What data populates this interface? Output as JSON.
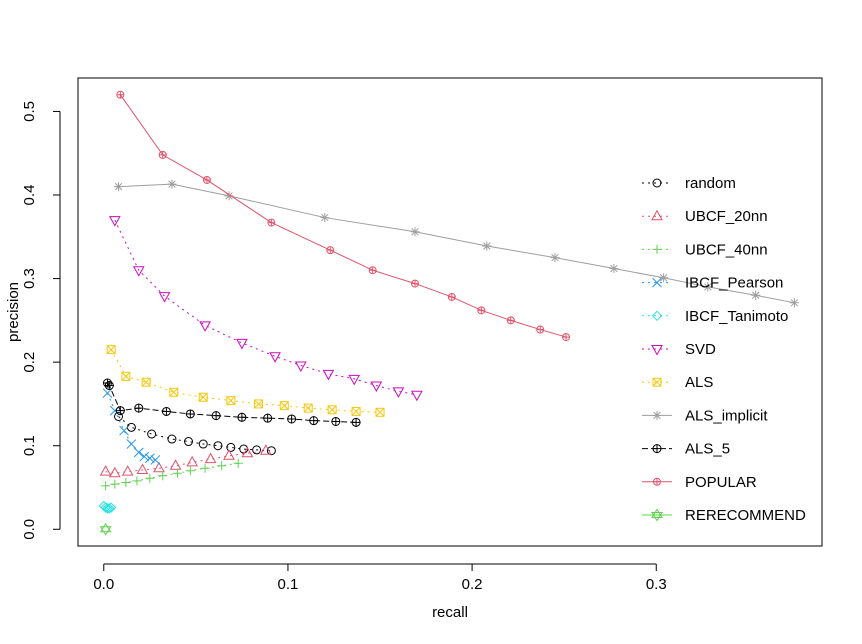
{
  "chart_data": {
    "type": "line",
    "title": "",
    "xlabel": "recall",
    "ylabel": "precision",
    "xlim": [
      -0.014,
      0.39
    ],
    "ylim": [
      -0.02,
      0.54
    ],
    "x_ticks": [
      0.0,
      0.1,
      0.2,
      0.3
    ],
    "x_tick_labels": [
      "0.0",
      "0.1",
      "0.2",
      "0.3"
    ],
    "y_ticks": [
      0.0,
      0.1,
      0.2,
      0.3,
      0.4,
      0.5
    ],
    "y_tick_labels": [
      "0.0",
      "0.1",
      "0.2",
      "0.3",
      "0.4",
      "0.5"
    ],
    "grid": false,
    "legend_position": "right",
    "series": [
      {
        "name": "random",
        "color": "#000000",
        "marker": "circle",
        "dash": "2,4",
        "x": [
          0.008,
          0.015,
          0.026,
          0.037,
          0.046,
          0.054,
          0.062,
          0.069,
          0.076,
          0.083,
          0.091
        ],
        "y": [
          0.135,
          0.122,
          0.114,
          0.108,
          0.105,
          0.102,
          0.1,
          0.098,
          0.096,
          0.095,
          0.094
        ]
      },
      {
        "name": "UBCF_20nn",
        "color": "#DF536B",
        "marker": "triangle-up",
        "dash": "2,4",
        "x": [
          0.001,
          0.006,
          0.013,
          0.021,
          0.03,
          0.039,
          0.048,
          0.058,
          0.068,
          0.078,
          0.088
        ],
        "y": [
          0.069,
          0.067,
          0.069,
          0.071,
          0.073,
          0.076,
          0.08,
          0.084,
          0.088,
          0.091,
          0.094
        ]
      },
      {
        "name": "UBCF_40nn",
        "color": "#61D04F",
        "marker": "plus",
        "dash": "2,4",
        "x": [
          0.001,
          0.006,
          0.012,
          0.018,
          0.025,
          0.032,
          0.04,
          0.047,
          0.055,
          0.064,
          0.073
        ],
        "y": [
          0.052,
          0.054,
          0.056,
          0.058,
          0.061,
          0.064,
          0.067,
          0.07,
          0.073,
          0.076,
          0.079
        ]
      },
      {
        "name": "IBCF_Pearson",
        "color": "#2297E6",
        "marker": "cross",
        "dash": "2,4",
        "x": [
          0.002,
          0.006,
          0.011,
          0.015,
          0.019,
          0.022,
          0.025,
          0.028
        ],
        "y": [
          0.163,
          0.142,
          0.118,
          0.102,
          0.092,
          0.087,
          0.085,
          0.083
        ]
      },
      {
        "name": "IBCF_Tanimoto",
        "color": "#28E2E5",
        "marker": "diamond",
        "dash": "2,4",
        "x": [
          0.0,
          0.001,
          0.002,
          0.003,
          0.004
        ],
        "y": [
          0.028,
          0.026,
          0.025,
          0.025,
          0.026
        ]
      },
      {
        "name": "SVD",
        "color": "#CD0BBC",
        "marker": "triangle-down",
        "dash": "2,4",
        "x": [
          0.006,
          0.019,
          0.033,
          0.055,
          0.075,
          0.093,
          0.107,
          0.122,
          0.136,
          0.148,
          0.16,
          0.17
        ],
        "y": [
          0.37,
          0.31,
          0.279,
          0.244,
          0.223,
          0.207,
          0.196,
          0.186,
          0.18,
          0.172,
          0.165,
          0.161
        ]
      },
      {
        "name": "ALS",
        "color": "#F5C710",
        "marker": "square-x",
        "dash": "2,4",
        "x": [
          0.004,
          0.012,
          0.023,
          0.038,
          0.054,
          0.069,
          0.084,
          0.098,
          0.111,
          0.124,
          0.137,
          0.15
        ],
        "y": [
          0.215,
          0.183,
          0.176,
          0.164,
          0.158,
          0.154,
          0.15,
          0.148,
          0.145,
          0.143,
          0.141,
          0.14
        ]
      },
      {
        "name": "ALS_implicit",
        "color": "#9E9E9E",
        "marker": "asterisk",
        "dash": "",
        "x": [
          0.008,
          0.037,
          0.068,
          0.12,
          0.169,
          0.208,
          0.245,
          0.277,
          0.304,
          0.328,
          0.354,
          0.375
        ],
        "y": [
          0.41,
          0.413,
          0.399,
          0.373,
          0.356,
          0.339,
          0.325,
          0.312,
          0.301,
          0.29,
          0.28,
          0.271
        ]
      },
      {
        "name": "ALS_5",
        "color": "#000000",
        "marker": "circle-plus",
        "dash": "6,3",
        "x": [
          0.002,
          0.003,
          0.009,
          0.019,
          0.034,
          0.047,
          0.061,
          0.075,
          0.089,
          0.102,
          0.114,
          0.126,
          0.137
        ],
        "y": [
          0.175,
          0.172,
          0.142,
          0.145,
          0.141,
          0.138,
          0.136,
          0.134,
          0.133,
          0.132,
          0.13,
          0.129,
          0.128
        ]
      },
      {
        "name": "POPULAR",
        "color": "#DF536B",
        "marker": "circle-plus-small",
        "dash": "",
        "x": [
          0.009,
          0.032,
          0.056,
          0.091,
          0.123,
          0.146,
          0.169,
          0.189,
          0.205,
          0.221,
          0.237,
          0.251
        ],
        "y": [
          0.52,
          0.448,
          0.418,
          0.367,
          0.334,
          0.31,
          0.294,
          0.278,
          0.262,
          0.25,
          0.239,
          0.23
        ]
      },
      {
        "name": "RERECOMMEND",
        "color": "#61D04F",
        "marker": "star-of-david",
        "dash": "",
        "x": [
          0.001
        ],
        "y": [
          0.0
        ]
      }
    ]
  }
}
